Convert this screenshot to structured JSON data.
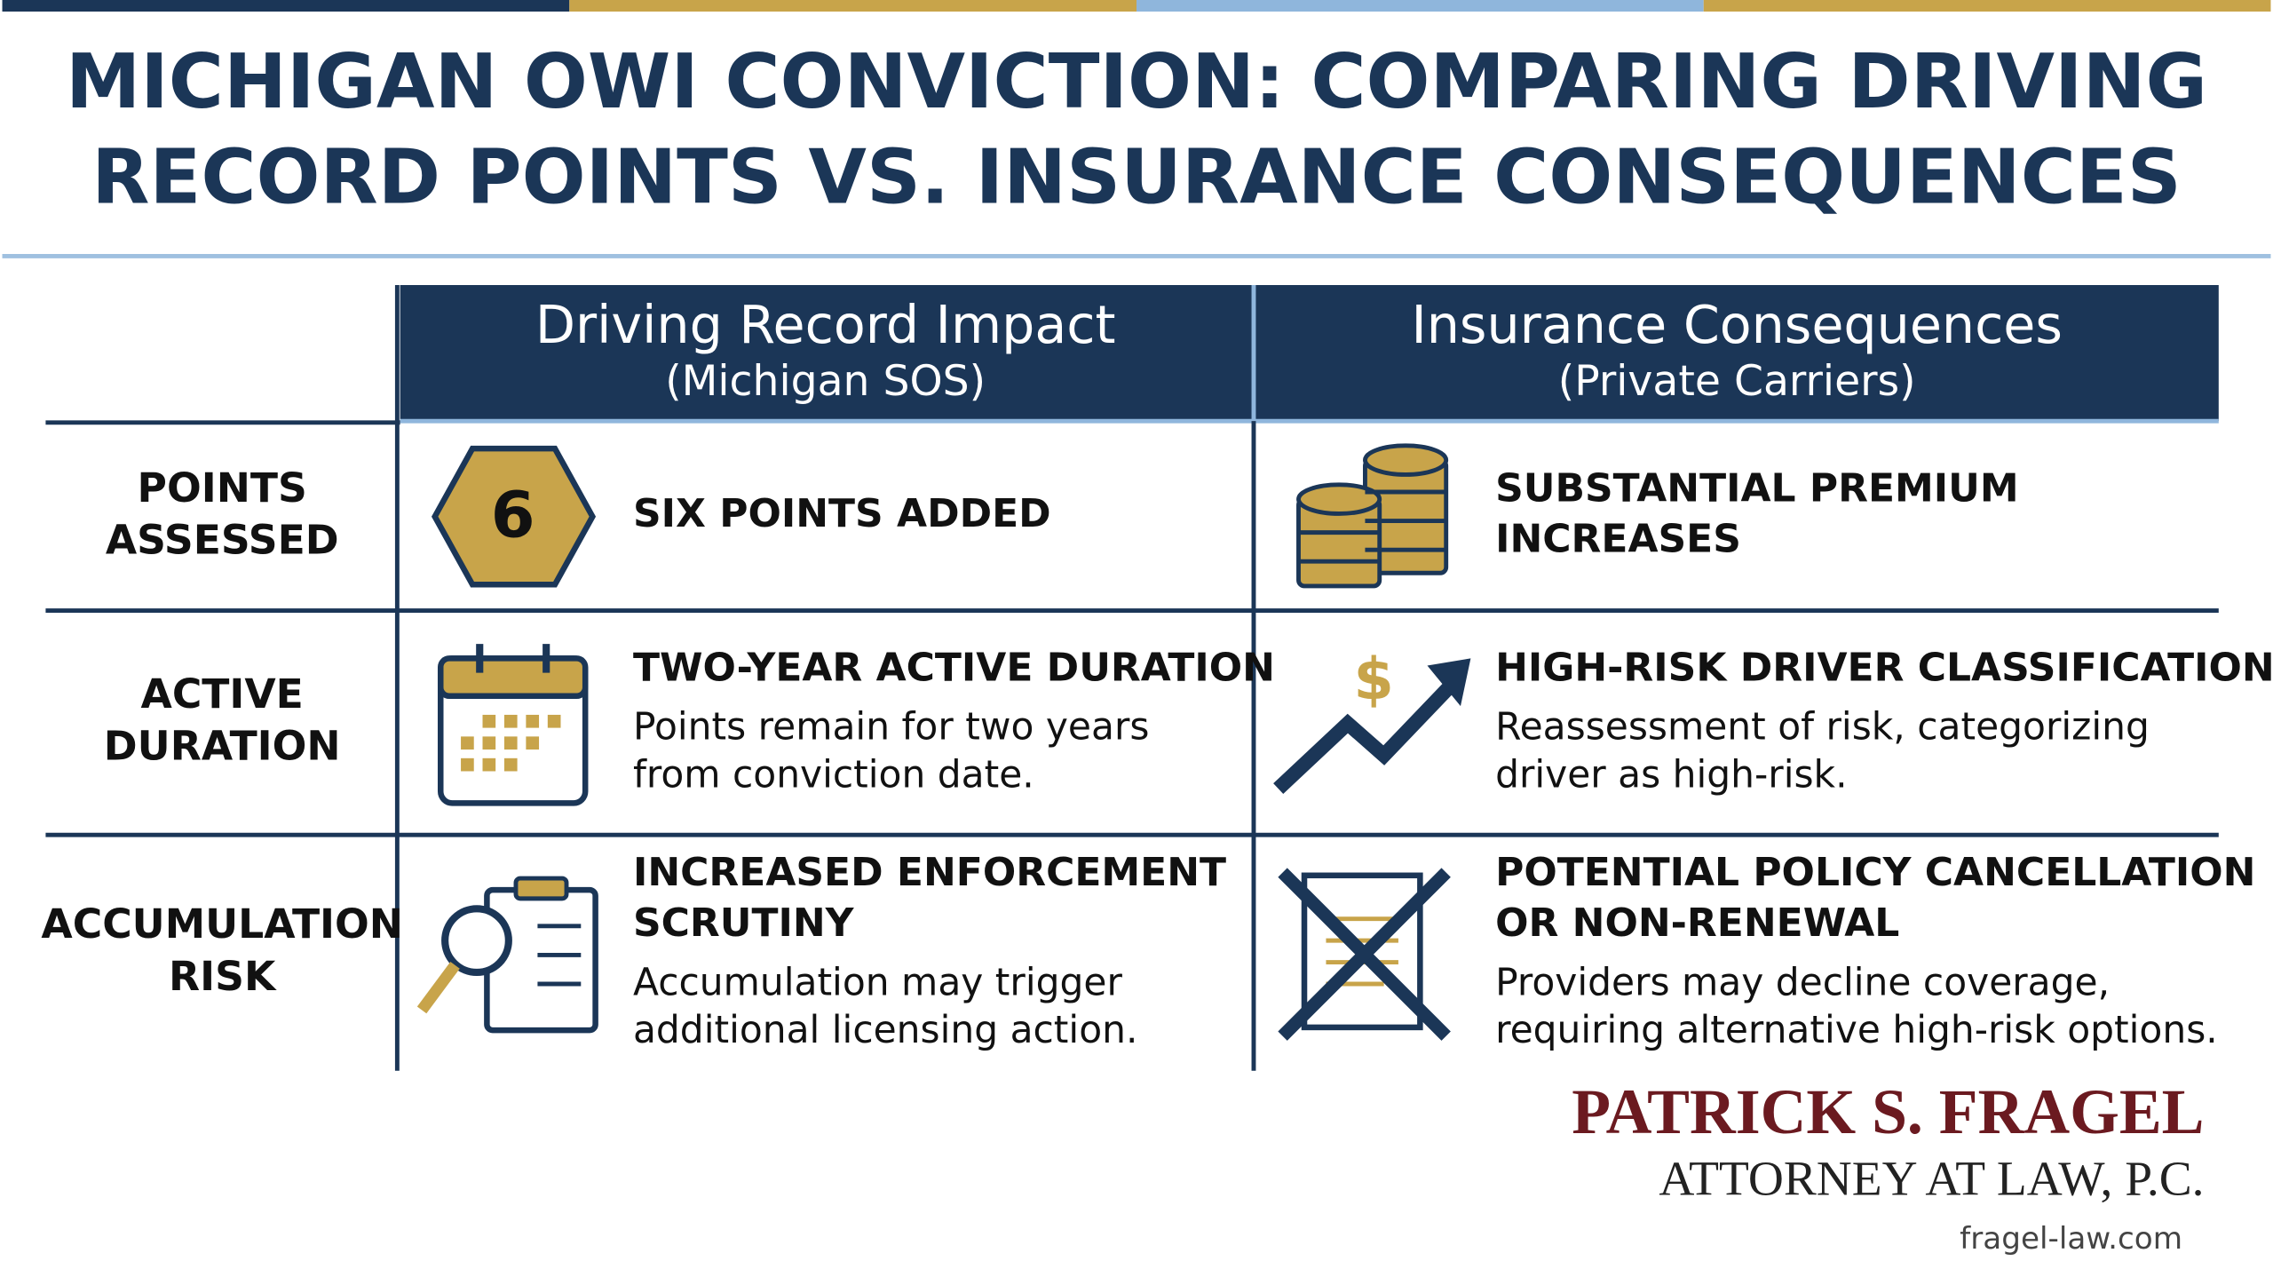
{
  "title": [
    "MICHIGAN OWI CONVICTION: COMPARING DRIVING",
    "RECORD POINTS VS. INSURANCE CONSEQUENCES"
  ],
  "columns": [
    {
      "title": "Driving Record Impact",
      "subtitle": "(Michigan SOS)"
    },
    {
      "title": "Insurance Consequences",
      "subtitle": "(Private Carriers)"
    }
  ],
  "badge": "6",
  "rows": [
    {
      "label": [
        "POINTS",
        "ASSESSED"
      ],
      "cells": [
        {
          "heading": [
            "SIX POINTS ADDED"
          ],
          "description": []
        },
        {
          "heading": [
            "SUBSTANTIAL PREMIUM",
            "INCREASES"
          ],
          "description": []
        }
      ]
    },
    {
      "label": [
        "ACTIVE",
        "DURATION"
      ],
      "cells": [
        {
          "heading": [
            "TWO-YEAR ACTIVE DURATION"
          ],
          "description": [
            "Points remain for two years",
            "from conviction date."
          ]
        },
        {
          "heading": [
            "HIGH-RISK DRIVER CLASSIFICATION"
          ],
          "description": [
            "Reassessment of risk, categorizing",
            "driver as high-risk."
          ]
        }
      ]
    },
    {
      "label": [
        "ACCUMULATION",
        "RISK"
      ],
      "cells": [
        {
          "heading": [
            "INCREASED ENFORCEMENT",
            "SCRUTINY"
          ],
          "description": [
            "Accumulation may trigger",
            "additional licensing action."
          ]
        },
        {
          "heading": [
            "POTENTIAL POLICY CANCELLATION",
            "OR NON-RENEWAL"
          ],
          "description": [
            "Providers may decline coverage,",
            "requiring alternative high-risk options."
          ]
        }
      ]
    }
  ],
  "footer": {
    "firm": "PATRICK S. FRAGEL",
    "subtitle": "ATTORNEY AT LAW, P.C.",
    "url": "fragel-law.com"
  }
}
